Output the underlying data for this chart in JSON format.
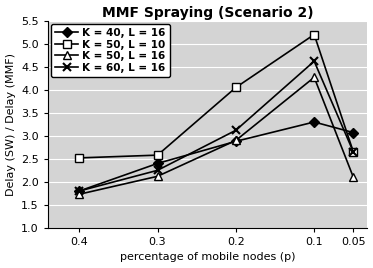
{
  "title": "MMF Spraying (Scenario 2)",
  "xlabel": "percentage of mobile nodes (p)",
  "ylabel": "Delay (SW) / Delay (MMF)",
  "x": [
    0.4,
    0.3,
    0.2,
    0.1,
    0.05
  ],
  "series": [
    {
      "label": "K = 40, L = 16",
      "y": [
        1.8,
        2.4,
        2.88,
        3.3,
        3.07
      ],
      "color": "black",
      "marker": "D",
      "markersize": 5,
      "markerfacecolor": "black",
      "linewidth": 1.2
    },
    {
      "label": "K = 50, L = 10",
      "y": [
        2.52,
        2.58,
        4.05,
        5.2,
        2.65
      ],
      "color": "black",
      "marker": "s",
      "markersize": 6,
      "markerfacecolor": "white",
      "linewidth": 1.2
    },
    {
      "label": "K = 50, L = 16",
      "y": [
        1.73,
        2.12,
        2.9,
        4.27,
        2.1
      ],
      "color": "black",
      "marker": "^",
      "markersize": 6,
      "markerfacecolor": "white",
      "linewidth": 1.2
    },
    {
      "label": "K = 60, L = 16",
      "y": [
        1.8,
        2.25,
        3.12,
        4.62,
        2.65
      ],
      "color": "black",
      "marker": "x",
      "markersize": 6,
      "markerfacecolor": "black",
      "markeredgewidth": 1.5,
      "linewidth": 1.2
    }
  ],
  "ylim": [
    1.0,
    5.5
  ],
  "yticks": [
    1.0,
    1.5,
    2.0,
    2.5,
    3.0,
    3.5,
    4.0,
    4.5,
    5.0,
    5.5
  ],
  "xticks": [
    0.4,
    0.3,
    0.2,
    0.1,
    0.05
  ],
  "xticklabels": [
    "0.4",
    "0.3",
    "0.2",
    "0.1",
    "0.05"
  ],
  "xlim_left": 0.44,
  "xlim_right": 0.032,
  "plot_bg": "#d4d4d4",
  "fig_bg": "#ffffff",
  "title_fontsize": 10,
  "axis_label_fontsize": 8,
  "tick_fontsize": 8,
  "legend_fontsize": 7.5
}
